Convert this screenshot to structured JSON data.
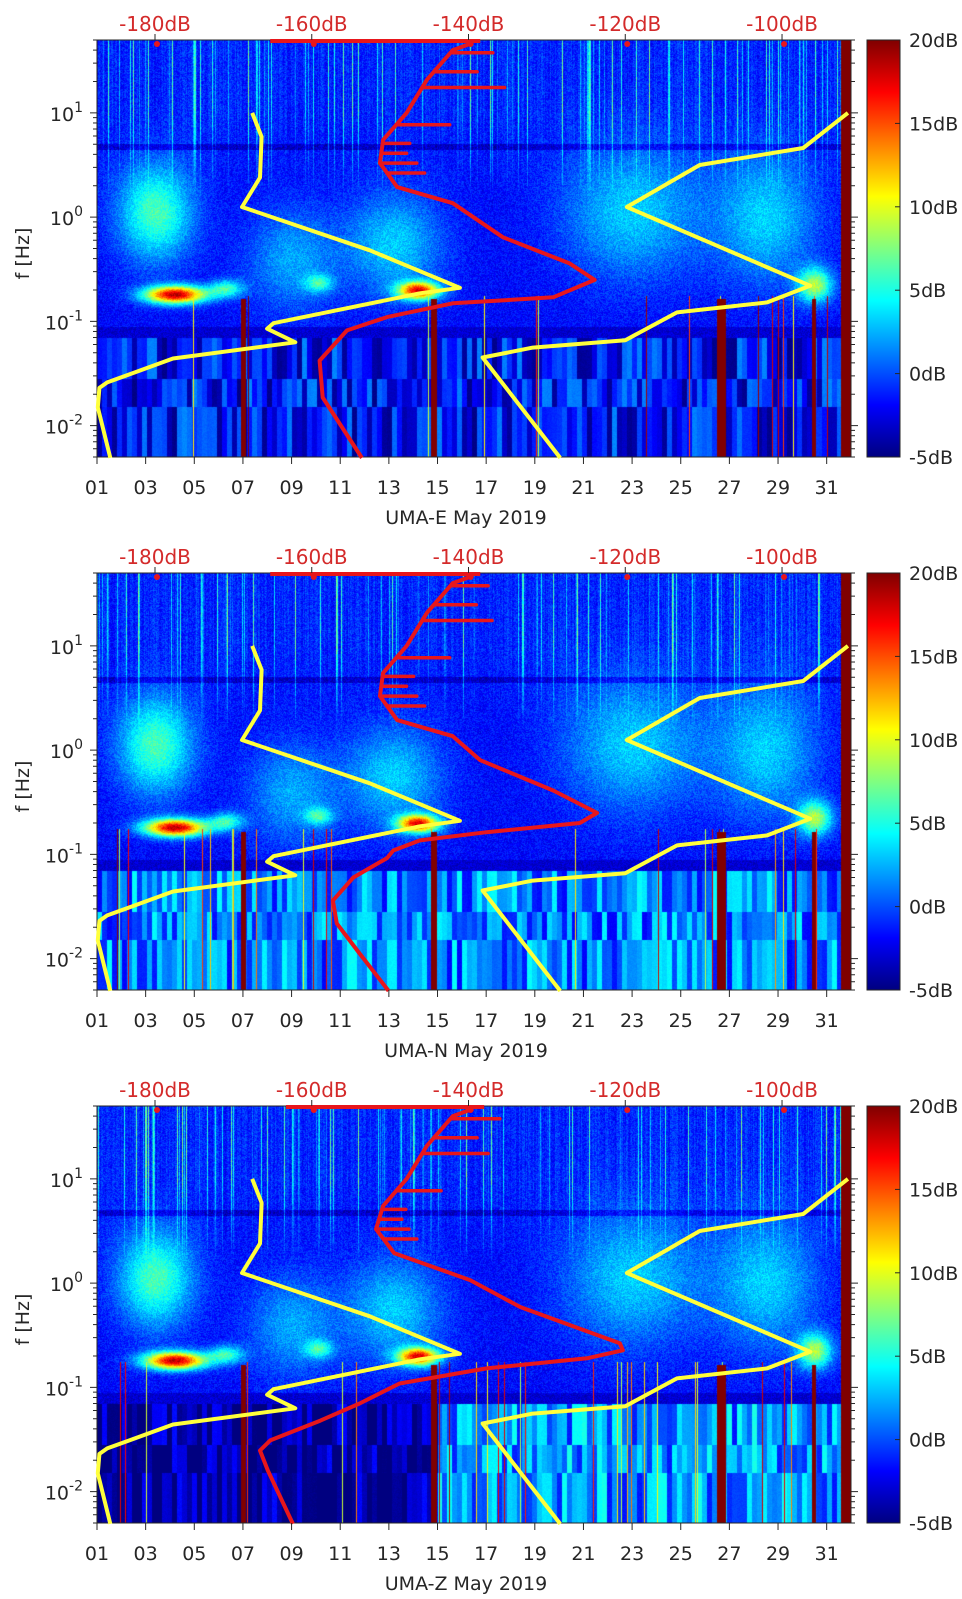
{
  "chart_data": [
    {
      "type": "heatmap",
      "title": "",
      "xlabel": "UMA-E May 2019",
      "ylabel": "f [Hz]",
      "x_range_days": [
        1,
        32
      ],
      "y_range_hz": [
        0.005,
        50
      ],
      "y_scale": "log",
      "x_tick_labels": [
        "01",
        "03",
        "05",
        "07",
        "09",
        "11",
        "13",
        "15",
        "17",
        "19",
        "21",
        "23",
        "25",
        "27",
        "29",
        "31"
      ],
      "y_tick_labels": [
        {
          "base": "10",
          "exp": "1"
        },
        {
          "base": "10",
          "exp": "0"
        },
        {
          "base": "10",
          "exp": "-1"
        },
        {
          "base": "10",
          "exp": "-2"
        }
      ],
      "top_axis": {
        "range_db": [
          -187.4,
          -91.2
        ],
        "tick_labels": [
          "-180dB",
          "-160dB",
          "-140dB",
          "-120dB",
          "-100dB"
        ],
        "tick_values": [
          -180,
          -160,
          -140,
          -120,
          -100
        ]
      },
      "colorbar": {
        "range_db": [
          -5,
          20
        ],
        "tick_labels": [
          "20dB",
          "15dB",
          "10dB",
          "5dB",
          "0dB",
          "-5dB"
        ],
        "tick_values": [
          20,
          15,
          10,
          5,
          0,
          -5
        ]
      },
      "low_freq_level_db": -1,
      "series": [
        {
          "name": "low-noise-model",
          "color": "#ffff3c",
          "points_db_hz": [
            [
              -167.6,
              10
            ],
            [
              -166.4,
              5.9
            ],
            [
              -166.6,
              2.4
            ],
            [
              -168.9,
              1.25
            ],
            [
              -152.6,
              0.48
            ],
            [
              -141.1,
              0.21
            ],
            [
              -146.2,
              0.186
            ],
            [
              -164.9,
              0.096
            ],
            [
              -165.7,
              0.085
            ],
            [
              -162.1,
              0.063
            ],
            [
              -177.7,
              0.044
            ],
            [
              -186.1,
              0.026
            ],
            [
              -187.1,
              0.023
            ],
            [
              -187.3,
              0.015
            ],
            [
              -185.7,
              0.0049
            ]
          ]
        },
        {
          "name": "high-noise-model",
          "color": "#ffff3c",
          "points_db_hz": [
            [
              -91.6,
              10
            ],
            [
              -97.3,
              4.6
            ],
            [
              -110.5,
              3.16
            ],
            [
              -119.8,
              1.25
            ],
            [
              -96.4,
              0.22
            ],
            [
              -101.9,
              0.152
            ],
            [
              -113.4,
              0.122
            ],
            [
              -120.0,
              0.066
            ],
            [
              -131.8,
              0.056
            ],
            [
              -138.2,
              0.045
            ],
            [
              -128.3,
              0.0049
            ]
          ]
        },
        {
          "name": "median-psd",
          "color": "#e8161b",
          "points_db_hz": [
            [
              -139.4,
              47
            ],
            [
              -142.0,
              40
            ],
            [
              -145.3,
              20.8
            ],
            [
              -147.9,
              10
            ],
            [
              -150.9,
              5.5
            ],
            [
              -151.3,
              3.3
            ],
            [
              -149.1,
              1.94
            ],
            [
              -142.0,
              1.36
            ],
            [
              -135.6,
              0.64
            ],
            [
              -127.1,
              0.36
            ],
            [
              -123.9,
              0.25
            ],
            [
              -129.2,
              0.17
            ],
            [
              -142.0,
              0.149
            ],
            [
              -150.4,
              0.11
            ],
            [
              -155.5,
              0.082
            ],
            [
              -159.0,
              0.042
            ],
            [
              -158.6,
              0.0186
            ],
            [
              -153.6,
              0.0049
            ]
          ],
          "top_segment_db": [
            -165.3,
            -138.5
          ],
          "spikes_hz_db": [
            [
              37.7,
              -136.9
            ],
            [
              24.8,
              -138.9
            ],
            [
              17.5,
              -135.4
            ],
            [
              7.7,
              -142.4
            ],
            [
              5.1,
              -147.5
            ],
            [
              4.1,
              -147.9
            ],
            [
              3.3,
              -146.6
            ],
            [
              2.65,
              -145.6
            ]
          ]
        }
      ]
    },
    {
      "type": "heatmap",
      "title": "",
      "xlabel": "UMA-N May 2019",
      "ylabel": "f [Hz]",
      "x_range_days": [
        1,
        32
      ],
      "y_range_hz": [
        0.005,
        50
      ],
      "y_scale": "log",
      "x_tick_labels": [
        "01",
        "03",
        "05",
        "07",
        "09",
        "11",
        "13",
        "15",
        "17",
        "19",
        "21",
        "23",
        "25",
        "27",
        "29",
        "31"
      ],
      "y_tick_labels": [
        {
          "base": "10",
          "exp": "1"
        },
        {
          "base": "10",
          "exp": "0"
        },
        {
          "base": "10",
          "exp": "-1"
        },
        {
          "base": "10",
          "exp": "-2"
        }
      ],
      "top_axis": {
        "range_db": [
          -187.4,
          -91.2
        ],
        "tick_labels": [
          "-180dB",
          "-160dB",
          "-140dB",
          "-120dB",
          "-100dB"
        ],
        "tick_values": [
          -180,
          -160,
          -140,
          -120,
          -100
        ]
      },
      "colorbar": {
        "range_db": [
          -5,
          20
        ],
        "tick_labels": [
          "20dB",
          "15dB",
          "10dB",
          "5dB",
          "0dB",
          "-5dB"
        ],
        "tick_values": [
          20,
          15,
          10,
          5,
          0,
          -5
        ]
      },
      "low_freq_level_db": 2,
      "series": [
        {
          "name": "low-noise-model",
          "color": "#ffff3c",
          "points_db_hz": [
            [
              -167.6,
              10
            ],
            [
              -166.4,
              5.9
            ],
            [
              -166.6,
              2.4
            ],
            [
              -168.9,
              1.25
            ],
            [
              -152.6,
              0.48
            ],
            [
              -141.1,
              0.21
            ],
            [
              -146.2,
              0.186
            ],
            [
              -164.9,
              0.096
            ],
            [
              -165.7,
              0.085
            ],
            [
              -162.1,
              0.063
            ],
            [
              -177.7,
              0.044
            ],
            [
              -186.1,
              0.026
            ],
            [
              -187.1,
              0.023
            ],
            [
              -187.3,
              0.015
            ],
            [
              -185.7,
              0.0049
            ]
          ]
        },
        {
          "name": "high-noise-model",
          "color": "#ffff3c",
          "points_db_hz": [
            [
              -91.6,
              10
            ],
            [
              -97.3,
              4.6
            ],
            [
              -110.5,
              3.16
            ],
            [
              -119.8,
              1.25
            ],
            [
              -96.4,
              0.22
            ],
            [
              -101.9,
              0.152
            ],
            [
              -113.4,
              0.122
            ],
            [
              -120.0,
              0.066
            ],
            [
              -131.8,
              0.056
            ],
            [
              -138.2,
              0.045
            ],
            [
              -128.3,
              0.0049
            ]
          ]
        },
        {
          "name": "median-psd",
          "color": "#e8161b",
          "points_db_hz": [
            [
              -139.4,
              47
            ],
            [
              -142.0,
              40
            ],
            [
              -145.3,
              20.8
            ],
            [
              -147.9,
              10
            ],
            [
              -150.9,
              5.5
            ],
            [
              -151.3,
              3.3
            ],
            [
              -149.1,
              1.94
            ],
            [
              -142.0,
              1.36
            ],
            [
              -138.5,
              0.8
            ],
            [
              -129.2,
              0.41
            ],
            [
              -123.6,
              0.25
            ],
            [
              -125.8,
              0.2
            ],
            [
              -137.7,
              0.163
            ],
            [
              -146.2,
              0.136
            ],
            [
              -149.6,
              0.109
            ],
            [
              -150.4,
              0.092
            ],
            [
              -154.7,
              0.06
            ],
            [
              -157.3,
              0.036
            ],
            [
              -156.8,
              0.0217
            ],
            [
              -153.9,
              0.0112
            ],
            [
              -150.2,
              0.0049
            ]
          ],
          "top_segment_db": [
            -165.3,
            -138.5
          ],
          "spikes_hz_db": [
            [
              37.7,
              -137.5
            ],
            [
              24.8,
              -139.0
            ],
            [
              17.5,
              -137.0
            ],
            [
              7.7,
              -142.4
            ],
            [
              5.1,
              -147.0
            ],
            [
              4.1,
              -147.9
            ],
            [
              3.3,
              -146.6
            ],
            [
              2.65,
              -145.6
            ]
          ]
        }
      ]
    },
    {
      "type": "heatmap",
      "title": "",
      "xlabel": "UMA-Z May 2019",
      "ylabel": "f [Hz]",
      "x_range_days": [
        1,
        32
      ],
      "y_range_hz": [
        0.005,
        50
      ],
      "y_scale": "log",
      "x_tick_labels": [
        "01",
        "03",
        "05",
        "07",
        "09",
        "11",
        "13",
        "15",
        "17",
        "19",
        "21",
        "23",
        "25",
        "27",
        "29",
        "31"
      ],
      "y_tick_labels": [
        {
          "base": "10",
          "exp": "1"
        },
        {
          "base": "10",
          "exp": "0"
        },
        {
          "base": "10",
          "exp": "-1"
        },
        {
          "base": "10",
          "exp": "-2"
        }
      ],
      "top_axis": {
        "range_db": [
          -187.4,
          -91.2
        ],
        "tick_labels": [
          "-180dB",
          "-160dB",
          "-140dB",
          "-120dB",
          "-100dB"
        ],
        "tick_values": [
          -180,
          -160,
          -140,
          -120,
          -100
        ]
      },
      "colorbar": {
        "range_db": [
          -5,
          20
        ],
        "tick_labels": [
          "20dB",
          "15dB",
          "10dB",
          "5dB",
          "0dB",
          "-5dB"
        ],
        "tick_values": [
          20,
          15,
          10,
          5,
          0,
          -5
        ]
      },
      "low_freq_level_db": -4,
      "series": [
        {
          "name": "low-noise-model",
          "color": "#ffff3c",
          "points_db_hz": [
            [
              -167.6,
              10
            ],
            [
              -166.4,
              5.9
            ],
            [
              -166.6,
              2.4
            ],
            [
              -168.9,
              1.25
            ],
            [
              -152.6,
              0.48
            ],
            [
              -141.1,
              0.21
            ],
            [
              -146.2,
              0.186
            ],
            [
              -164.9,
              0.096
            ],
            [
              -165.7,
              0.085
            ],
            [
              -162.1,
              0.063
            ],
            [
              -177.7,
              0.044
            ],
            [
              -186.1,
              0.026
            ],
            [
              -187.1,
              0.023
            ],
            [
              -187.3,
              0.015
            ],
            [
              -185.7,
              0.0049
            ]
          ]
        },
        {
          "name": "high-noise-model",
          "color": "#ffff3c",
          "points_db_hz": [
            [
              -91.6,
              10
            ],
            [
              -97.3,
              4.6
            ],
            [
              -110.5,
              3.16
            ],
            [
              -119.8,
              1.25
            ],
            [
              -96.4,
              0.22
            ],
            [
              -101.9,
              0.152
            ],
            [
              -113.4,
              0.122
            ],
            [
              -120.0,
              0.066
            ],
            [
              -131.8,
              0.056
            ],
            [
              -138.2,
              0.045
            ],
            [
              -128.3,
              0.0049
            ]
          ]
        },
        {
          "name": "median-psd",
          "color": "#e8161b",
          "points_db_hz": [
            [
              -139.4,
              47
            ],
            [
              -142.0,
              40
            ],
            [
              -145.3,
              20.8
            ],
            [
              -147.9,
              10
            ],
            [
              -150.9,
              5.5
            ],
            [
              -151.8,
              3.3
            ],
            [
              -149.5,
              1.94
            ],
            [
              -139.8,
              1.07
            ],
            [
              -133.4,
              0.59
            ],
            [
              -120.7,
              0.265
            ],
            [
              -120.3,
              0.227
            ],
            [
              -124.9,
              0.19
            ],
            [
              -137.7,
              0.152
            ],
            [
              -148.8,
              0.109
            ],
            [
              -153.9,
              0.07
            ],
            [
              -158.9,
              0.048
            ],
            [
              -165.3,
              0.031
            ],
            [
              -166.6,
              0.0248
            ],
            [
              -165.6,
              0.0159
            ],
            [
              -162.4,
              0.0049
            ]
          ],
          "top_segment_db": [
            -163.3,
            -138.0
          ],
          "spikes_hz_db": [
            [
              37.7,
              -136.0
            ],
            [
              24.8,
              -138.9
            ],
            [
              17.5,
              -137.5
            ],
            [
              7.7,
              -143.5
            ],
            [
              5.1,
              -148.0
            ],
            [
              4.1,
              -148.5
            ],
            [
              3.3,
              -147.6
            ],
            [
              2.65,
              -146.6
            ]
          ]
        }
      ]
    }
  ]
}
